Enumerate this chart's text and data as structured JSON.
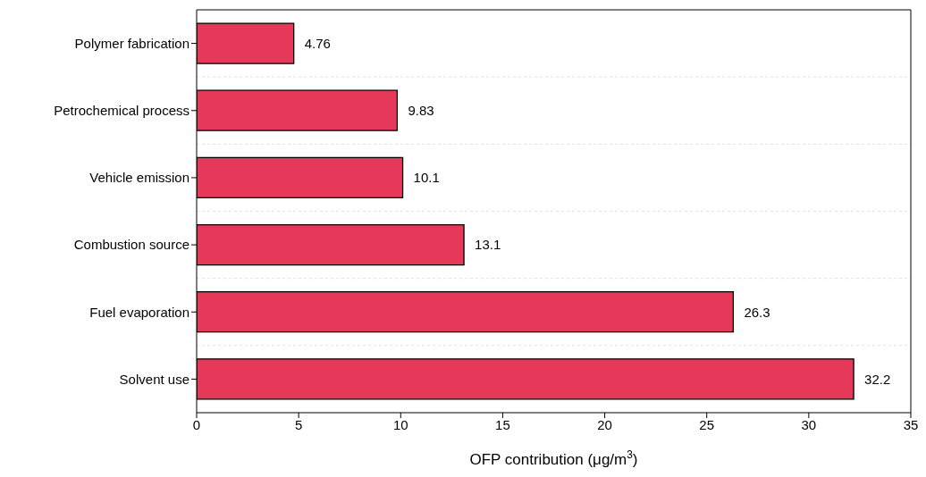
{
  "chart_data": {
    "type": "bar",
    "orientation": "horizontal",
    "categories": [
      "Polymer fabrication",
      "Petrochemical process",
      "Vehicle emission",
      "Combustion source",
      "Fuel evaporation",
      "Solvent use"
    ],
    "values": [
      4.76,
      9.83,
      10.1,
      13.1,
      26.3,
      32.2
    ],
    "color": "#e6395a",
    "xlabel": "OFP contribution (μg/m$^{3}$)",
    "xlim": [
      0,
      35
    ],
    "xticks": [
      0,
      5,
      10,
      15,
      20,
      25,
      30,
      35
    ],
    "grid": "y",
    "data_labels": true
  }
}
